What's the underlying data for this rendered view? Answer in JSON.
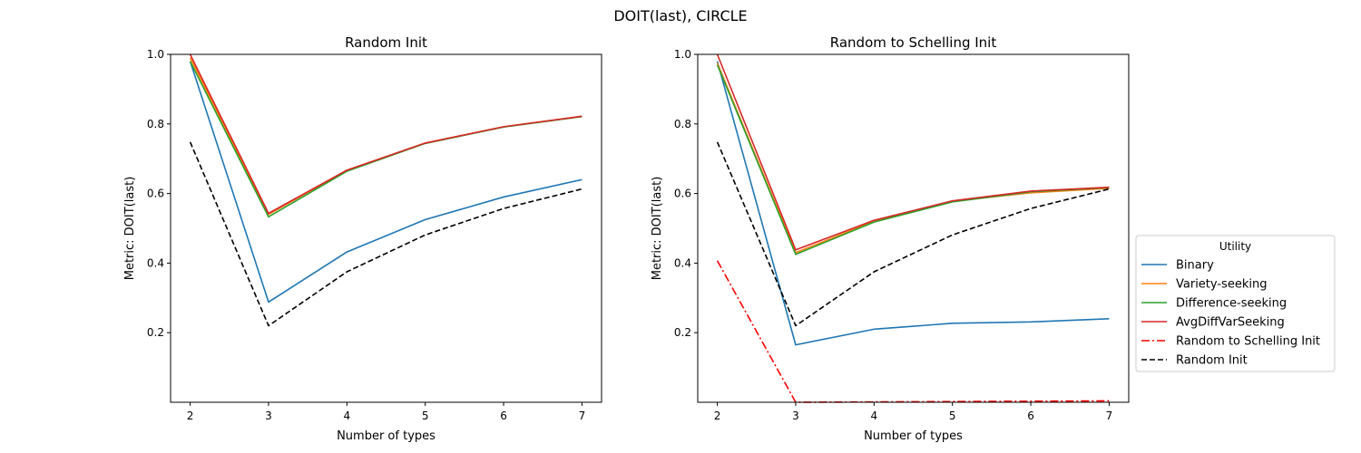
{
  "figure": {
    "suptitle": "DOIT(last), CIRCLE"
  },
  "legend": {
    "title": "Utility",
    "entries": [
      {
        "label": "Binary",
        "color": "#1f77b4",
        "dash": "solid"
      },
      {
        "label": "Variety-seeking",
        "color": "#ff7f0e",
        "dash": "solid"
      },
      {
        "label": "Difference-seeking",
        "color": "#2ca02c",
        "dash": "solid"
      },
      {
        "label": "AvgDiffVarSeeking",
        "color": "#d62728",
        "dash": "solid"
      },
      {
        "label": "Random to Schelling Init",
        "color": "#ff0000",
        "dash": "dashdot"
      },
      {
        "label": "Random Init",
        "color": "#000000",
        "dash": "dashed"
      }
    ]
  },
  "chart_data": [
    {
      "type": "line",
      "title": "Random Init",
      "xlabel": "Number of types",
      "ylabel": "Metric: DOIT(last)",
      "x": [
        2,
        3,
        4,
        5,
        6,
        7
      ],
      "xlim": [
        1.75,
        7.25
      ],
      "ylim": [
        0.0,
        1.0
      ],
      "xticks": [
        "2",
        "3",
        "4",
        "5",
        "6",
        "7"
      ],
      "yticks": [
        "0.2",
        "0.4",
        "0.6",
        "0.8",
        "1.0"
      ],
      "grid": false,
      "series": [
        {
          "name": "Binary",
          "color": "#1f77b4",
          "dash": "solid",
          "values": [
            0.98,
            0.288,
            0.432,
            0.525,
            0.59,
            0.64
          ]
        },
        {
          "name": "Variety-seeking",
          "color": "#ff7f0e",
          "dash": "solid",
          "values": [
            0.99,
            0.54,
            0.667,
            0.745,
            0.792,
            0.822
          ]
        },
        {
          "name": "Difference-seeking",
          "color": "#2ca02c",
          "dash": "solid",
          "values": [
            0.98,
            0.533,
            0.664,
            0.744,
            0.791,
            0.821
          ]
        },
        {
          "name": "AvgDiffVarSeeking",
          "color": "#d62728",
          "dash": "solid",
          "values": [
            1.0,
            0.543,
            0.667,
            0.745,
            0.792,
            0.822
          ]
        },
        {
          "name": "Random Init",
          "color": "#000000",
          "dash": "dashed",
          "values": [
            0.748,
            0.22,
            0.375,
            0.481,
            0.557,
            0.613
          ]
        }
      ]
    },
    {
      "type": "line",
      "title": "Random to Schelling Init",
      "xlabel": "Number of types",
      "ylabel": "Metric: DOIT(last)",
      "x": [
        2,
        3,
        4,
        5,
        6,
        7
      ],
      "xlim": [
        1.75,
        7.25
      ],
      "ylim": [
        0.0,
        1.0
      ],
      "xticks": [
        "2",
        "3",
        "4",
        "5",
        "6",
        "7"
      ],
      "yticks": [
        "0.2",
        "0.4",
        "0.6",
        "0.8",
        "1.0"
      ],
      "grid": false,
      "series": [
        {
          "name": "Binary",
          "color": "#1f77b4",
          "dash": "solid",
          "values": [
            0.98,
            0.165,
            0.21,
            0.227,
            0.231,
            0.24
          ]
        },
        {
          "name": "Variety-seeking",
          "color": "#ff7f0e",
          "dash": "solid",
          "values": [
            0.975,
            0.43,
            0.52,
            0.578,
            0.602,
            0.615
          ]
        },
        {
          "name": "Difference-seeking",
          "color": "#2ca02c",
          "dash": "solid",
          "values": [
            0.97,
            0.425,
            0.518,
            0.576,
            0.605,
            0.617
          ]
        },
        {
          "name": "AvgDiffVarSeeking",
          "color": "#d62728",
          "dash": "solid",
          "values": [
            1.0,
            0.438,
            0.523,
            0.579,
            0.607,
            0.618
          ]
        },
        {
          "name": "Random to Schelling Init",
          "color": "#ff0000",
          "dash": "dashdot",
          "values": [
            0.407,
            0.0,
            0.001,
            0.002,
            0.003,
            0.004
          ]
        },
        {
          "name": "Random Init",
          "color": "#000000",
          "dash": "dashed",
          "values": [
            0.748,
            0.22,
            0.375,
            0.481,
            0.557,
            0.613
          ]
        }
      ]
    }
  ]
}
